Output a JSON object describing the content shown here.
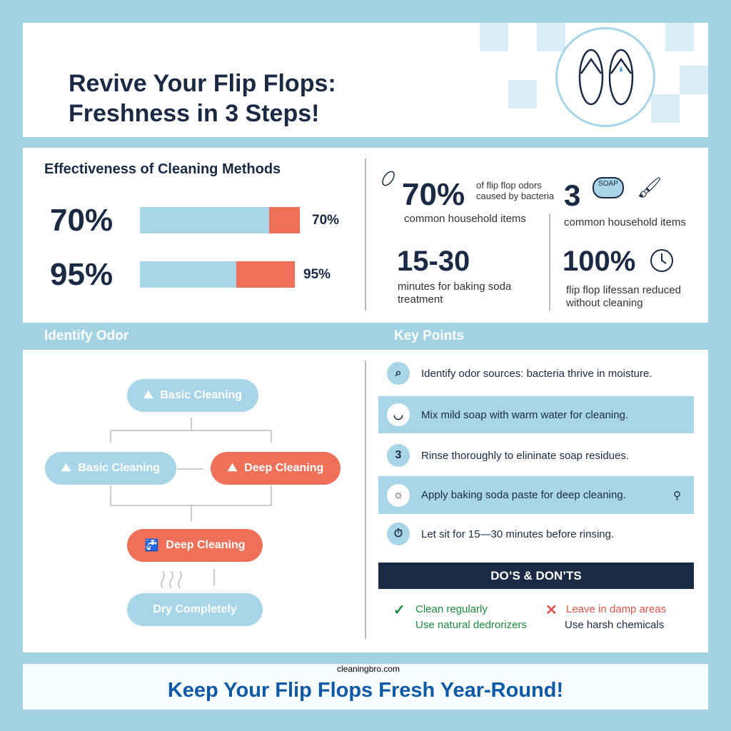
{
  "header": {
    "title_line1": "Revive Your Flip Flops:",
    "title_line2": "Freshness in 3 Steps!"
  },
  "chart_data": {
    "type": "bar",
    "title": "Effectiveness of Cleaning Methods",
    "categories": [
      "70%",
      "95%"
    ],
    "values": [
      70,
      95
    ],
    "data_labels": [
      "70%",
      "95%"
    ],
    "colors": {
      "bar": "#a8d6e8",
      "accent": "#ef7058"
    }
  },
  "stats": [
    {
      "value": "70%",
      "label": "of flip flop odors caused by bacteria",
      "sublabel": "common household items",
      "icon": "bacteria-icon"
    },
    {
      "value": "3",
      "label": "common household items",
      "icon": "soap-icon",
      "soap_text": "SOAP"
    },
    {
      "value": "15-30",
      "label": "minutes for baking soda treatment"
    },
    {
      "value": "100%",
      "label": "flip flop lifessan reduced without cleaning",
      "icon": "clock-icon"
    }
  ],
  "flow": {
    "heading": "Identify Odor",
    "nodes": [
      "Basic Cleaning",
      "Basic Cleaning",
      "Deep Cleaning",
      "Deep Cleaning",
      "Dry Completely"
    ]
  },
  "key_points": {
    "heading": "Key Points",
    "items": [
      {
        "icon": "magnifier-icon",
        "text": "Identify odor sources: bacteria thrive in moisture."
      },
      {
        "icon": "bowl-icon",
        "text": "Mix mild soap with warm water for cleaning."
      },
      {
        "icon": "number-icon",
        "icon_text": "3",
        "text": "Rinse thoroughly to elininate soap residues."
      },
      {
        "icon": "sun-icon",
        "text": "Apply baking soda paste for deep cleaning."
      },
      {
        "icon": "stopwatch-icon",
        "text": "Let sit for 15—30 minutes before rinsing."
      }
    ]
  },
  "dos_donts": {
    "title": "DO’S & DON’TS",
    "dos": [
      "Clean regularly",
      "Use natural dedrorizers"
    ],
    "donts": [
      "Leave in damp areas",
      "Use harsh chemicals"
    ],
    "colors": {
      "do": "#1e8a3e",
      "dont": "#e5534b"
    }
  },
  "footer": {
    "tagline": "Keep Your Flip Flops Fresh Year-Round!",
    "watermark": "cleaningbro.com"
  },
  "colors": {
    "navy": "#1b2a44",
    "blue": "#a8d6e8",
    "red": "#ef7058",
    "footer_text": "#0f5aa6"
  }
}
